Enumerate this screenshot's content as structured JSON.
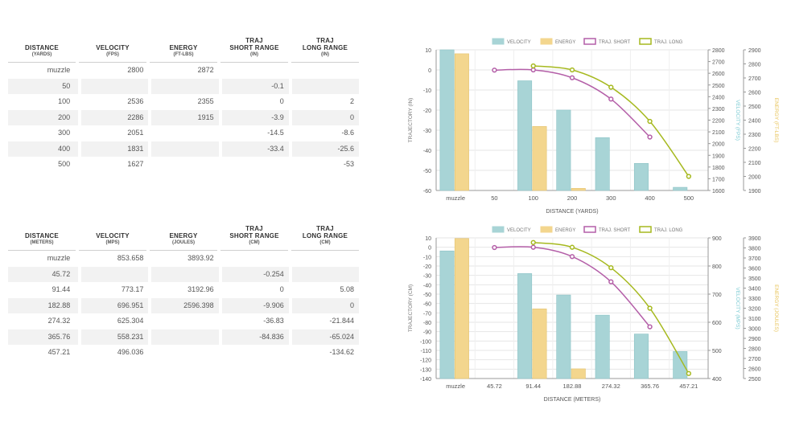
{
  "tables": [
    {
      "headers": [
        {
          "title": "DISTANCE",
          "sub": "(YARDS)"
        },
        {
          "title": "VELOCITY",
          "sub": "(FPS)"
        },
        {
          "title": "ENERGY",
          "sub": "(FT-LBS)"
        },
        {
          "title": "TRAJ\nSHORT RANGE",
          "sub": "(IN)"
        },
        {
          "title": "TRAJ\nLONG RANGE",
          "sub": "(IN)"
        }
      ],
      "rows": [
        [
          "muzzle",
          "2800",
          "2872",
          "",
          ""
        ],
        [
          "50",
          "",
          "",
          "-0.1",
          ""
        ],
        [
          "100",
          "2536",
          "2355",
          "0",
          "2"
        ],
        [
          "200",
          "2286",
          "1915",
          "-3.9",
          "0"
        ],
        [
          "300",
          "2051",
          "",
          "-14.5",
          "-8.6"
        ],
        [
          "400",
          "1831",
          "",
          "-33.4",
          "-25.6"
        ],
        [
          "500",
          "1627",
          "",
          "",
          "-53"
        ]
      ]
    },
    {
      "headers": [
        {
          "title": "DISTANCE",
          "sub": "(METERS)"
        },
        {
          "title": "VELOCITY",
          "sub": "(MPS)"
        },
        {
          "title": "ENERGY",
          "sub": "(JOULES)"
        },
        {
          "title": "TRAJ\nSHORT RANGE",
          "sub": "(CM)"
        },
        {
          "title": "TRAJ\nLONG RANGE",
          "sub": "(CM)"
        }
      ],
      "rows": [
        [
          "muzzle",
          "853.658",
          "3893.92",
          "",
          ""
        ],
        [
          "45.72",
          "",
          "",
          "-0.254",
          ""
        ],
        [
          "91.44",
          "773.17",
          "3192.96",
          "0",
          "5.08"
        ],
        [
          "182.88",
          "696.951",
          "2596.398",
          "-9.906",
          "0"
        ],
        [
          "274.32",
          "625.304",
          "",
          "-36.83",
          "-21.844"
        ],
        [
          "365.76",
          "558.231",
          "",
          "-84.836",
          "-65.024"
        ],
        [
          "457.21",
          "496.036",
          "",
          "",
          "-134.62"
        ]
      ]
    }
  ],
  "colors": {
    "velocity": "#a8d4d6",
    "energy": "#f3d68e",
    "traj_short": "#b45fa8",
    "traj_long": "#a6b91f",
    "axis_left": "#555555",
    "axis_velocity": "#7ccbd3",
    "axis_energy": "#e8c45a"
  },
  "chart_data": [
    {
      "type": "bar",
      "categories": [
        "muzzle",
        "50",
        "100",
        "200",
        "300",
        "400",
        "500"
      ],
      "legend": [
        "VELOCITY",
        "ENERGY",
        "TRAJ. SHORT",
        "TRAJ. LONG"
      ],
      "legend_position": "top",
      "xlabel": "DISTANCE (YARDS)",
      "ylabel": "TRAJECTORY (IN)",
      "y2label": "VELOCITY (FPS)",
      "y3label": "ENERGY (FT-LBS)",
      "ylim": [
        -60,
        10
      ],
      "yticks": [
        10,
        0,
        -10,
        -20,
        -30,
        -40,
        -50,
        -60
      ],
      "y2lim": [
        1600,
        2800
      ],
      "y2ticks": [
        2800,
        2700,
        2600,
        2500,
        2400,
        2300,
        2200,
        2100,
        2000,
        1900,
        1800,
        1700,
        1600
      ],
      "y3lim": [
        1900,
        2900
      ],
      "y3ticks": [
        2900,
        2800,
        2700,
        2600,
        2500,
        2400,
        2300,
        2200,
        2100,
        2000,
        1900
      ],
      "grid": true,
      "series": [
        {
          "name": "VELOCITY",
          "type": "bar",
          "axis": "velocity",
          "values": [
            2800,
            null,
            2536,
            2286,
            2051,
            1831,
            1627
          ]
        },
        {
          "name": "ENERGY",
          "type": "bar",
          "axis": "energy",
          "values": [
            2872,
            null,
            2355,
            1915,
            null,
            null,
            null
          ]
        },
        {
          "name": "TRAJ. SHORT",
          "type": "line",
          "axis": "trajectory",
          "values": [
            null,
            -0.1,
            0,
            -3.9,
            -14.5,
            -33.4,
            null
          ]
        },
        {
          "name": "TRAJ. LONG",
          "type": "line",
          "axis": "trajectory",
          "values": [
            null,
            null,
            2,
            0,
            -8.6,
            -25.6,
            -53
          ]
        }
      ]
    },
    {
      "type": "bar",
      "categories": [
        "muzzle",
        "45.72",
        "91.44",
        "182.88",
        "274.32",
        "365.76",
        "457.21"
      ],
      "legend": [
        "VELOCITY",
        "ENERGY",
        "TRAJ. SHORT",
        "TRAJ. LONG"
      ],
      "legend_position": "top",
      "xlabel": "DISTANCE (METERS)",
      "ylabel": "TRAJECTORY (CM)",
      "y2label": "VELOCITY (MPS)",
      "y3label": "ENERGY (JOULES)",
      "ylim": [
        -140,
        10
      ],
      "yticks": [
        10,
        0,
        -10,
        -20,
        -30,
        -40,
        -50,
        -60,
        -70,
        -80,
        -90,
        -100,
        -110,
        -120,
        -130,
        -140
      ],
      "y2lim": [
        400,
        900
      ],
      "y2ticks": [
        900,
        800,
        700,
        600,
        500,
        400
      ],
      "y3lim": [
        2500,
        3900
      ],
      "y3ticks": [
        3900,
        3800,
        3700,
        3600,
        3500,
        3400,
        3300,
        3200,
        3100,
        3000,
        2900,
        2800,
        2700,
        2600,
        2500
      ],
      "grid": true,
      "series": [
        {
          "name": "VELOCITY",
          "type": "bar",
          "axis": "velocity",
          "values": [
            853.658,
            null,
            773.17,
            696.951,
            625.304,
            558.231,
            496.036
          ]
        },
        {
          "name": "ENERGY",
          "type": "bar",
          "axis": "energy",
          "values": [
            3893.92,
            null,
            3192.96,
            2596.398,
            null,
            null,
            null
          ]
        },
        {
          "name": "TRAJ. SHORT",
          "type": "line",
          "axis": "trajectory",
          "values": [
            null,
            -0.254,
            0,
            -9.906,
            -36.83,
            -84.836,
            null
          ]
        },
        {
          "name": "TRAJ. LONG",
          "type": "line",
          "axis": "trajectory",
          "values": [
            null,
            null,
            5.08,
            0,
            -21.844,
            -65.024,
            -134.62
          ]
        }
      ]
    }
  ]
}
